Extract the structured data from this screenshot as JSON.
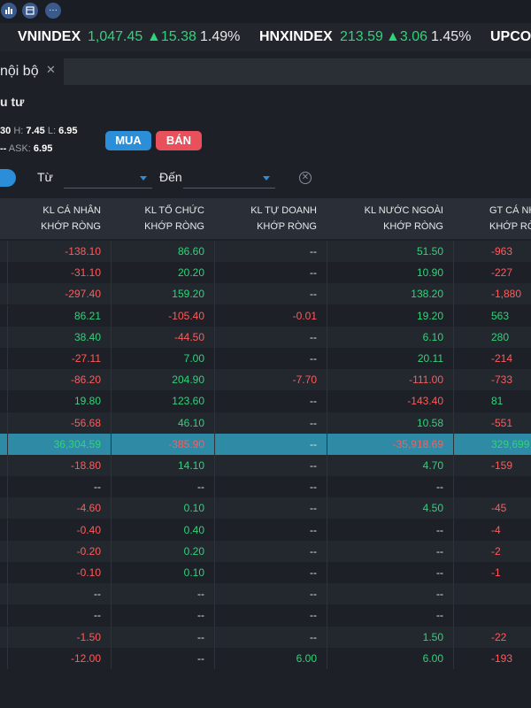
{
  "toolbar": {
    "icons": [
      "chart-icon",
      "calendar-icon",
      "more-icon"
    ],
    "more_label": "···"
  },
  "ticker": [
    {
      "name": "VNINDEX",
      "value": "1,047.45",
      "change": "15.38",
      "pct": "1.49%"
    },
    {
      "name": "HNXINDEX",
      "value": "213.59",
      "change": "3.06",
      "pct": "1.45%"
    },
    {
      "name": "UPCO",
      "value": "",
      "change": "",
      "pct": ""
    }
  ],
  "tab": {
    "label": "nội bộ",
    "close": "✕"
  },
  "section_title": "u tư",
  "quote": {
    "left": "30",
    "h_label": "H:",
    "h": "7.45",
    "l_label": "L:",
    "l": "6.95",
    "dash": "--",
    "ask_label": "ASK:",
    "ask": "6.95"
  },
  "buttons": {
    "buy": "MUA",
    "sell": "BÁN"
  },
  "filter": {
    "from": "Từ",
    "to": "Đến",
    "clear": "✕"
  },
  "columns": [
    {
      "l1": "KL CÁ NHÂN",
      "l2": "KHỚP RÒNG"
    },
    {
      "l1": "KL TỔ CHỨC",
      "l2": "KHỚP RÒNG"
    },
    {
      "l1": "KL TỰ DOANH",
      "l2": "KHỚP RÒNG"
    },
    {
      "l1": "KL NƯỚC NGOÀI",
      "l2": "KHỚP RÒNG"
    },
    {
      "l1": "GT CÁ NH",
      "l2": "KHỚP RÒ"
    }
  ],
  "rows": [
    [
      "-138.10",
      "86.60",
      "--",
      "51.50",
      "-963"
    ],
    [
      "-31.10",
      "20.20",
      "--",
      "10.90",
      "-227"
    ],
    [
      "-297.40",
      "159.20",
      "--",
      "138.20",
      "-1,880"
    ],
    [
      "86.21",
      "-105.40",
      "-0.01",
      "19.20",
      "563"
    ],
    [
      "38.40",
      "-44.50",
      "--",
      "6.10",
      "280"
    ],
    [
      "-27.11",
      "7.00",
      "--",
      "20.11",
      "-214"
    ],
    [
      "-86.20",
      "204.90",
      "-7.70",
      "-111.00",
      "-733"
    ],
    [
      "19.80",
      "123.60",
      "--",
      "-143.40",
      "81"
    ],
    [
      "-56.68",
      "46.10",
      "--",
      "10.58",
      "-551"
    ],
    [
      "36,304.59",
      "-385.90",
      "--",
      "-35,918.69",
      "329,699"
    ],
    [
      "-18.80",
      "14.10",
      "--",
      "4.70",
      "-159"
    ],
    [
      "--",
      "--",
      "--",
      "--",
      ""
    ],
    [
      "-4.60",
      "0.10",
      "--",
      "4.50",
      "-45"
    ],
    [
      "-0.40",
      "0.40",
      "--",
      "--",
      "-4"
    ],
    [
      "-0.20",
      "0.20",
      "--",
      "--",
      "-2"
    ],
    [
      "-0.10",
      "0.10",
      "--",
      "--",
      "-1"
    ],
    [
      "--",
      "--",
      "--",
      "--",
      ""
    ],
    [
      "--",
      "--",
      "--",
      "--",
      ""
    ],
    [
      "-1.50",
      "--",
      "--",
      "1.50",
      "-22"
    ],
    [
      "-12.00",
      "--",
      "6.00",
      "6.00",
      "-193"
    ]
  ],
  "highlight_row": 9,
  "colors": {
    "up": "#2fd47a",
    "down": "#ff5b5b",
    "accent": "#2a8fd8",
    "sell": "#e8505b",
    "highlight": "#2f8aa6"
  }
}
